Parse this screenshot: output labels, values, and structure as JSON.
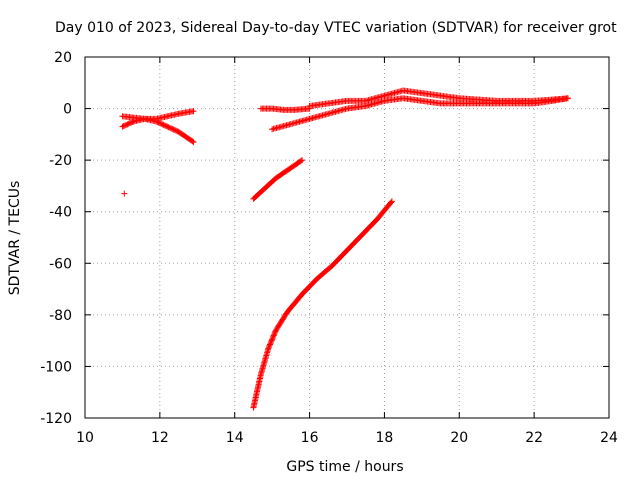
{
  "chart_data": {
    "type": "scatter",
    "title": "Day 010 of 2023, Sidereal Day-to-day VTEC variation (SDTVAR) for receiver grot",
    "xlabel": "GPS time / hours",
    "ylabel": "SDTVAR / TECUs",
    "xlim": [
      10,
      24
    ],
    "ylim": [
      -120,
      20
    ],
    "xticks": [
      10,
      12,
      14,
      16,
      18,
      20,
      22,
      24
    ],
    "yticks": [
      -120,
      -100,
      -80,
      -60,
      -40,
      -20,
      0,
      20
    ],
    "grid": true,
    "marker_color": "#ff0000",
    "series": [
      {
        "name": "isolated-point",
        "x": [
          11.05
        ],
        "y": [
          -33
        ]
      },
      {
        "name": "arc-11-12.9-upper",
        "x": [
          11.0,
          11.3,
          11.6,
          11.9,
          12.2,
          12.5,
          12.9
        ],
        "y": [
          -7,
          -5,
          -4,
          -4,
          -3,
          -2,
          -1
        ]
      },
      {
        "name": "arc-11-12.9-lower",
        "x": [
          11.0,
          11.3,
          11.6,
          11.9,
          12.2,
          12.5,
          12.9
        ],
        "y": [
          -3,
          -3.5,
          -4,
          -5,
          -7,
          -9,
          -13
        ]
      },
      {
        "name": "arc-14.5-15.8",
        "x": [
          14.5,
          14.8,
          15.1,
          15.4,
          15.8
        ],
        "y": [
          -35,
          -31,
          -27,
          -24,
          -20
        ]
      },
      {
        "name": "arc-14.5-18.2",
        "x": [
          14.5,
          14.7,
          14.9,
          15.1,
          15.4,
          15.8,
          16.2,
          16.6,
          17.0,
          17.4,
          17.8,
          18.2
        ],
        "y": [
          -116,
          -103,
          -93,
          -86,
          -79,
          -72,
          -66,
          -61,
          -55,
          -49,
          -43,
          -36
        ]
      },
      {
        "name": "flat-14.7-16",
        "x": [
          14.7,
          15.0,
          15.3,
          15.6,
          16.0
        ],
        "y": [
          0,
          0,
          -0.5,
          -0.5,
          0
        ]
      },
      {
        "name": "arc-15-22.9-lower",
        "x": [
          15.0,
          15.5,
          16.0,
          16.5,
          17.0,
          17.5,
          18.0,
          18.5,
          19.0,
          19.5,
          20.0,
          20.5,
          21.0,
          21.5,
          22.0,
          22.5,
          22.9
        ],
        "y": [
          -8,
          -6,
          -4,
          -2,
          0,
          1,
          3,
          4,
          3,
          2,
          2,
          2,
          2,
          2,
          2,
          3,
          4
        ]
      },
      {
        "name": "arc-16-22.9-upper",
        "x": [
          16.0,
          16.5,
          17.0,
          17.5,
          18.0,
          18.5,
          19.0,
          19.5,
          20.0,
          20.5,
          21.0,
          21.5,
          22.0,
          22.5,
          22.9
        ],
        "y": [
          1,
          2,
          3,
          3,
          5,
          7,
          6,
          5,
          4,
          3.5,
          3,
          3,
          3,
          3.5,
          4
        ]
      }
    ]
  }
}
